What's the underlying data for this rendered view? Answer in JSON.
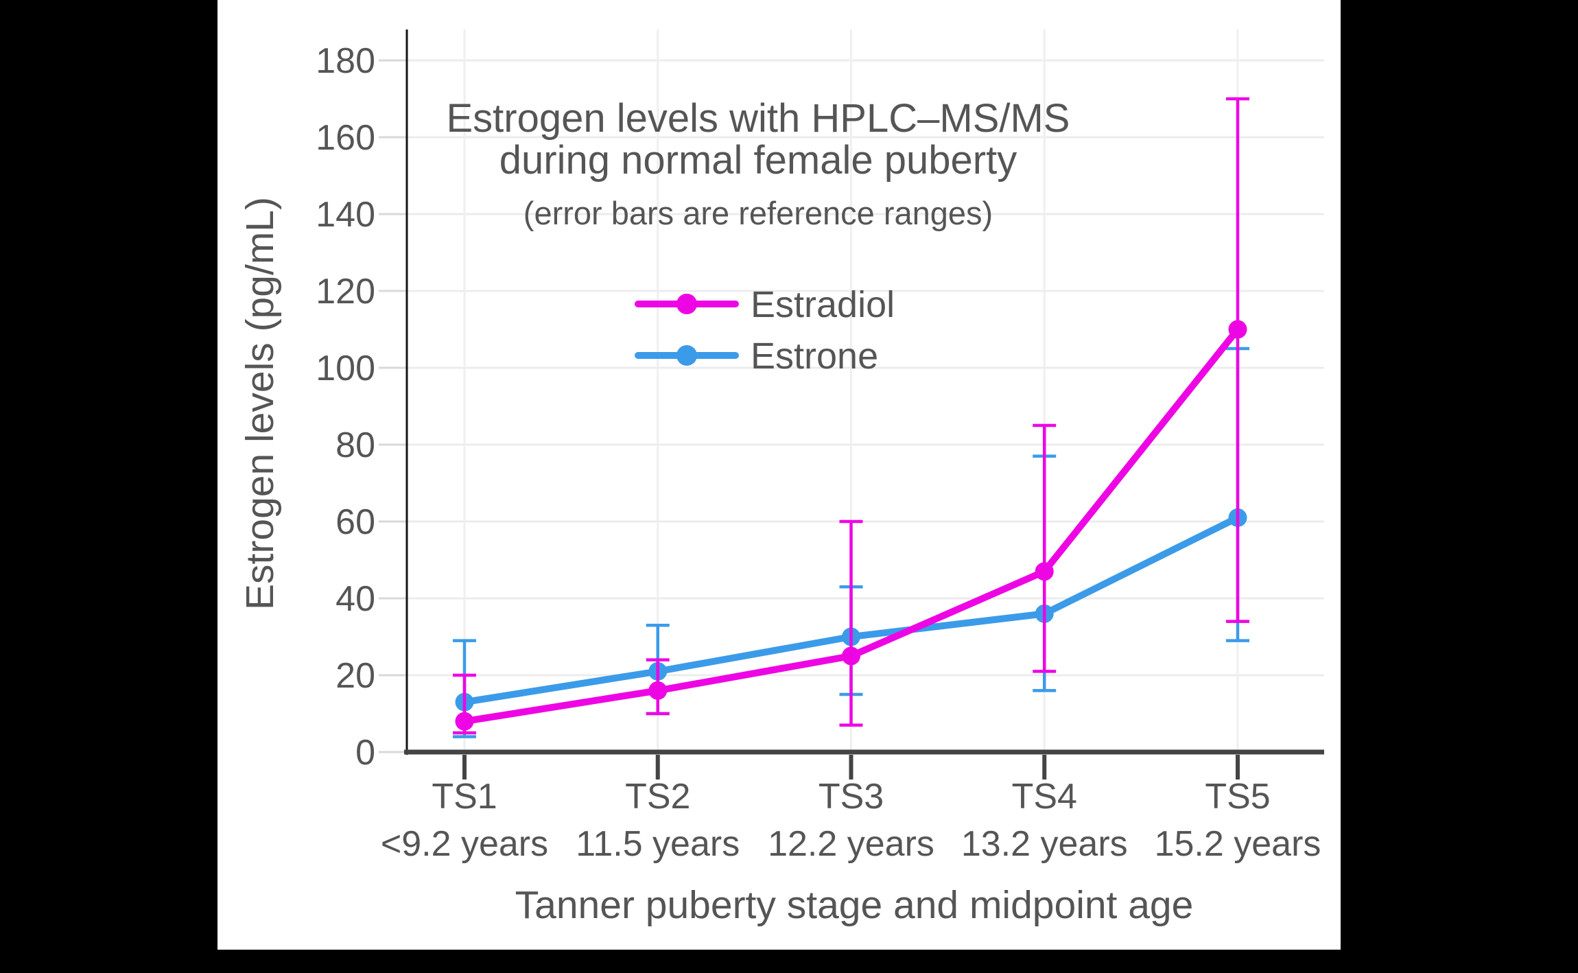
{
  "chart_data": {
    "type": "line",
    "title": "Estrogen levels with HPLC–MS/MS",
    "title_line2": "during normal female puberty",
    "subtitle": "(error bars are reference ranges)",
    "xlabel": "Tanner puberty stage and midpoint age",
    "ylabel": "Estrogen levels (pg/mL)",
    "categories": [
      "TS1",
      "TS2",
      "TS3",
      "TS4",
      "TS5"
    ],
    "category_sublabels": [
      "<9.2 years",
      "11.5 years",
      "12.2 years",
      "13.2 years",
      "15.2 years"
    ],
    "y_ticks": [
      0,
      20,
      40,
      60,
      80,
      100,
      120,
      140,
      160,
      180
    ],
    "ylim": [
      0,
      187
    ],
    "grid": true,
    "legend_position": "inside-upper-left",
    "series": [
      {
        "name": "Estradiol",
        "color": "#EE05E4",
        "values": [
          8,
          16,
          25,
          47,
          110
        ],
        "error_low": [
          5,
          10,
          7,
          21,
          34
        ],
        "error_high": [
          20,
          24,
          60,
          85,
          170
        ]
      },
      {
        "name": "Estrone",
        "color": "#3B9BE9",
        "values": [
          13,
          21,
          30,
          36,
          61
        ],
        "error_low": [
          4,
          10,
          15,
          16,
          29
        ],
        "error_high": [
          29,
          33,
          43,
          77,
          105
        ]
      }
    ]
  },
  "colors": {
    "background": "#000000",
    "panel": "#ffffff",
    "text": "#555555",
    "h_grid": "#ECECEC",
    "v_grid": "#EFEFEF",
    "y_tick": "#D9D9D9",
    "x_tick": "#444444",
    "left_spine": "#141414",
    "bottom_spine": "#444444"
  }
}
